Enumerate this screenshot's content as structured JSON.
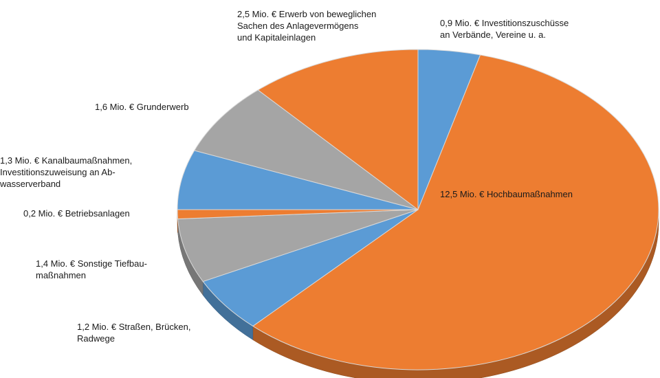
{
  "chart_data": {
    "type": "pie",
    "categories": [
      "Investitionszuschüsse\nan Verbände, Vereine u. a.",
      "Hochbaumaßnahmen",
      "Straßen, Brücken,\nRadwege",
      "Sonstige Tiefbau-\nmaßnahmen",
      "Betriebsanlagen",
      "Kanalbaumaßnahmen,\nInvestitionszuweisung an Ab-\nwasserverband",
      "Grunderwerb",
      "Erwerb von beweglichen\nSachen des Anlagevermögens\nund Kapitaleinlagen"
    ],
    "values": [
      0.9,
      12.5,
      1.2,
      1.4,
      0.2,
      1.3,
      1.6,
      2.5
    ],
    "value_labels": [
      "0,9 Mio. €",
      "12,5 Mio. €",
      "1,2 Mio. €",
      "1,4 Mio. €",
      "0,2 Mio. €",
      "1,3 Mio. €",
      "1,6 Mio. €",
      "2,5 Mio. €"
    ],
    "colors": [
      "#5b9bd5",
      "#ed7d31",
      "#5b9bd5",
      "#a5a5a5",
      "#ed7d31",
      "#5b9bd5",
      "#a5a5a5",
      "#ed7d31"
    ]
  }
}
